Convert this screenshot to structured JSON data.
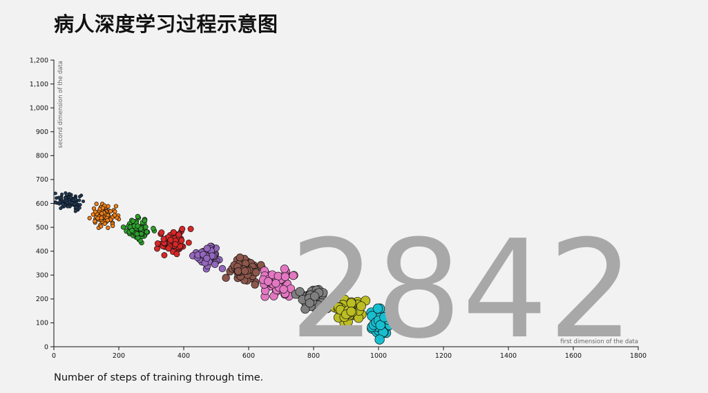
{
  "title": "病人深度学习过程示意图",
  "caption": "Number of steps of training through time.",
  "step_counter": "2842",
  "chart_data": {
    "type": "scatter",
    "xlabel": "first dimension of the data",
    "ylabel": "second dimension of the data",
    "xlim": [
      0,
      1800
    ],
    "ylim": [
      0,
      1200
    ],
    "x_ticks": [
      "0",
      "200",
      "400",
      "600",
      "800",
      "1000",
      "1200",
      "1400",
      "1600",
      "1800"
    ],
    "y_ticks": [
      "0",
      "100",
      "200",
      "300",
      "400",
      "500",
      "600",
      "700",
      "800",
      "900",
      "1,000",
      "1,100",
      "1,200"
    ],
    "grid": false,
    "series": [
      {
        "color": "#1f3a5a",
        "center": [
          50,
          605
        ],
        "spread": [
          45,
          38
        ],
        "count": 110,
        "marker_radius": 2.2
      },
      {
        "color": "#f07f16",
        "center": [
          155,
          548
        ],
        "spread": [
          45,
          50
        ],
        "count": 90,
        "marker_radius": 2.8
      },
      {
        "color": "#2ca02c",
        "center": [
          262,
          490
        ],
        "spread": [
          48,
          55
        ],
        "count": 80,
        "marker_radius": 3.4
      },
      {
        "color": "#d62728",
        "center": [
          370,
          438
        ],
        "spread": [
          52,
          55
        ],
        "count": 70,
        "marker_radius": 4.1
      },
      {
        "color": "#9467bd",
        "center": [
          478,
          380
        ],
        "spread": [
          50,
          55
        ],
        "count": 60,
        "marker_radius": 4.8
      },
      {
        "color": "#8c564b",
        "center": [
          585,
          320
        ],
        "spread": [
          55,
          60
        ],
        "count": 55,
        "marker_radius": 5.3
      },
      {
        "color": "#e377c2",
        "center": [
          688,
          268
        ],
        "spread": [
          55,
          58
        ],
        "count": 50,
        "marker_radius": 5.8
      },
      {
        "color": "#7f7f7f",
        "center": [
          795,
          205
        ],
        "spread": [
          55,
          60
        ],
        "count": 45,
        "marker_radius": 6.2
      },
      {
        "color": "#bcbd22",
        "center": [
          905,
          145
        ],
        "spread": [
          55,
          60
        ],
        "count": 42,
        "marker_radius": 6.6
      },
      {
        "color": "#17becf",
        "center": [
          1010,
          95
        ],
        "spread": [
          48,
          65
        ],
        "count": 40,
        "marker_radius": 6.8
      }
    ]
  }
}
